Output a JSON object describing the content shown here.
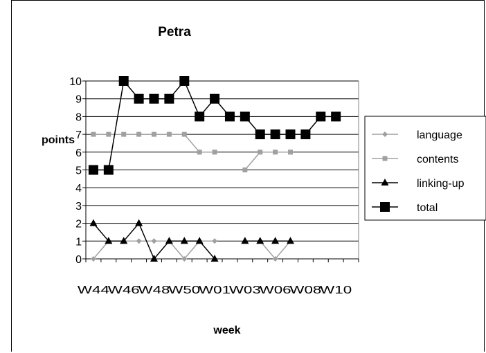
{
  "chart_data": {
    "type": "line",
    "title": "Petra",
    "xlabel": "week",
    "ylabel": "points",
    "ylim": [
      0,
      10
    ],
    "yticks": [
      "0",
      "1",
      "2",
      "3",
      "4",
      "5",
      "6",
      "7",
      "8",
      "9",
      "10"
    ],
    "x_tick_labels": [
      "W44",
      "W46",
      "W48",
      "W50",
      "W01",
      "W03",
      "W06",
      "W08",
      "W10"
    ],
    "grid": true,
    "legend_position": "right",
    "series": [
      {
        "name": "language",
        "marker": "diamond",
        "color": "#a0a0a0",
        "values": [
          0,
          1,
          1,
          1,
          1,
          1,
          0,
          1,
          1,
          null,
          null,
          1,
          0,
          1,
          null,
          null,
          null,
          null
        ]
      },
      {
        "name": "contents",
        "marker": "square",
        "color": "#a0a0a0",
        "values": [
          7,
          7,
          7,
          7,
          7,
          7,
          7,
          6,
          6,
          null,
          5,
          6,
          6,
          6,
          null,
          null,
          null,
          null
        ]
      },
      {
        "name": "linking-up",
        "marker": "triangle",
        "color": "#000000",
        "values": [
          2,
          1,
          1,
          2,
          0,
          1,
          1,
          1,
          0,
          null,
          1,
          1,
          1,
          1,
          null,
          null,
          null,
          null
        ]
      },
      {
        "name": "total",
        "marker": "square-large",
        "color": "#000000",
        "values": [
          5,
          5,
          10,
          9,
          9,
          9,
          10,
          8,
          9,
          8,
          8,
          7,
          7,
          7,
          7,
          8,
          8,
          null
        ]
      }
    ]
  }
}
